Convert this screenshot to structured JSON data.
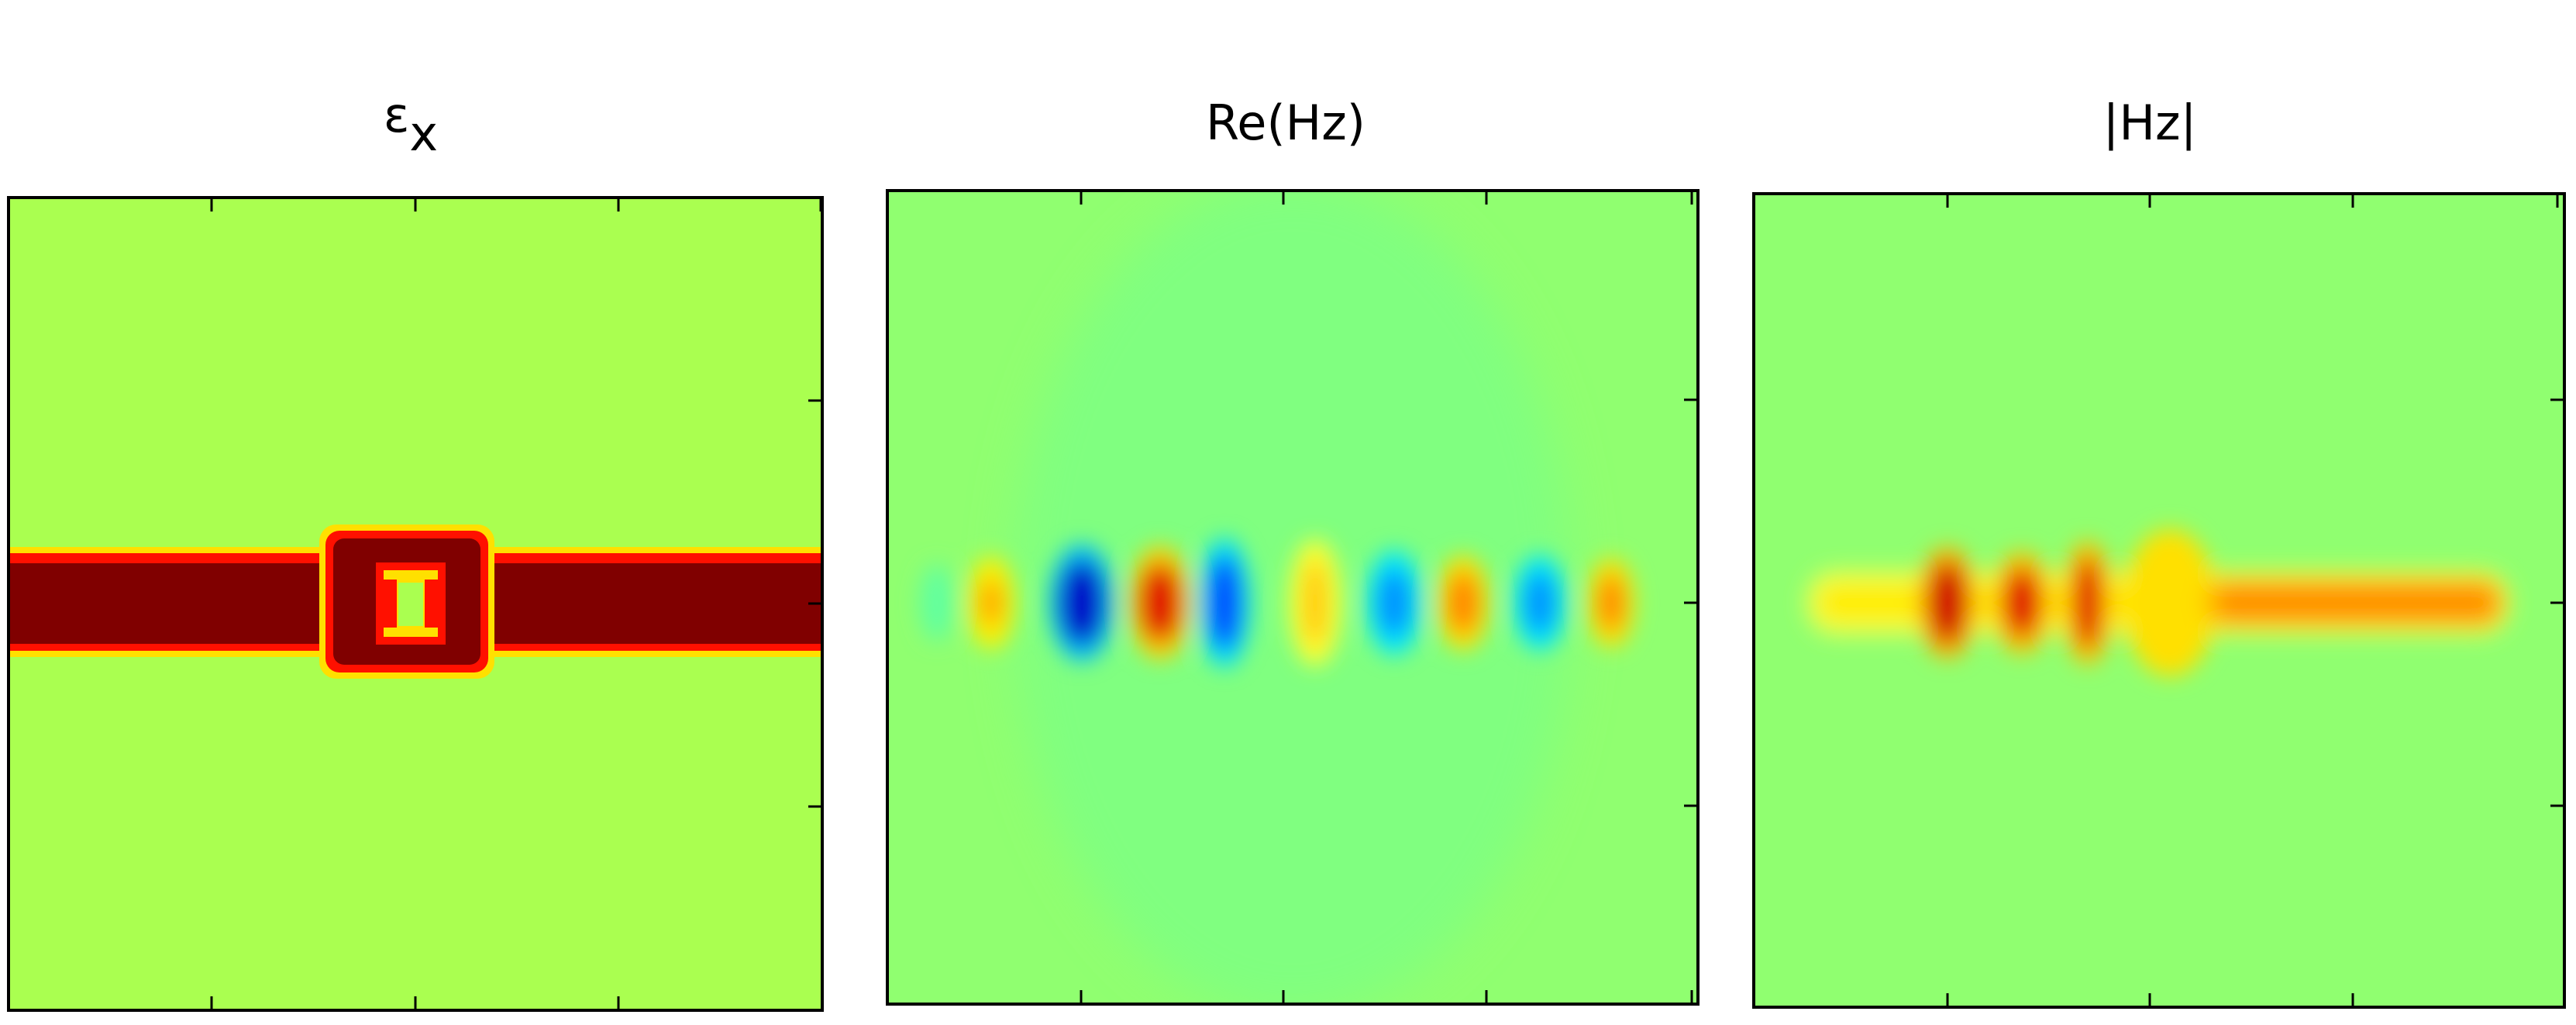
{
  "panels": [
    {
      "title": "ε",
      "subscript": "x"
    },
    {
      "title": "Re(Hz)"
    },
    {
      "title": "|Hz|"
    }
  ]
}
